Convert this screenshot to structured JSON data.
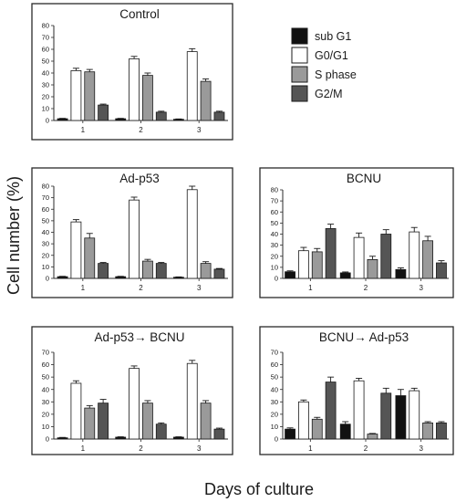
{
  "figure": {
    "ylabel": "Cell number (%)",
    "xlabel": "Days of culture"
  },
  "legend": {
    "items": [
      {
        "label": "sub G1",
        "color": "#111111"
      },
      {
        "label": "G0/G1",
        "color": "#ffffff"
      },
      {
        "label": "S phase",
        "color": "#9a9a9a"
      },
      {
        "label": "G2/M",
        "color": "#555555"
      }
    ]
  },
  "chart_data": [
    {
      "type": "bar",
      "title": "Control",
      "categories": [
        "1",
        "2",
        "3"
      ],
      "ylim": [
        0,
        80
      ],
      "yticks": [
        0,
        10,
        20,
        30,
        40,
        50,
        60,
        70,
        80
      ],
      "series": [
        {
          "name": "sub G1",
          "values": [
            1.5,
            1.5,
            1
          ],
          "errors": [
            0.3,
            0.3,
            0.3
          ]
        },
        {
          "name": "G0/G1",
          "values": [
            42,
            52,
            58
          ],
          "errors": [
            2,
            2,
            2.5
          ]
        },
        {
          "name": "S phase",
          "values": [
            41,
            38,
            33
          ],
          "errors": [
            2,
            2,
            2
          ]
        },
        {
          "name": "G2/M",
          "values": [
            13,
            7,
            7
          ],
          "errors": [
            0.8,
            0.8,
            0.8
          ]
        }
      ]
    },
    {
      "type": "bar",
      "title": "Ad-p53",
      "categories": [
        "1",
        "2",
        "3"
      ],
      "ylim": [
        0,
        80
      ],
      "yticks": [
        0,
        10,
        20,
        30,
        40,
        50,
        60,
        70,
        80
      ],
      "series": [
        {
          "name": "sub G1",
          "values": [
            1.5,
            1.5,
            1
          ],
          "errors": [
            0.3,
            0.3,
            0.3
          ]
        },
        {
          "name": "G0/G1",
          "values": [
            49,
            68,
            77
          ],
          "errors": [
            2,
            2.5,
            3
          ]
        },
        {
          "name": "S phase",
          "values": [
            35,
            15,
            13
          ],
          "errors": [
            4,
            1.5,
            1.5
          ]
        },
        {
          "name": "G2/M",
          "values": [
            13,
            13,
            8
          ],
          "errors": [
            0.8,
            0.8,
            0.6
          ]
        }
      ]
    },
    {
      "type": "bar",
      "title": "BCNU",
      "categories": [
        "1",
        "2",
        "3"
      ],
      "ylim": [
        0,
        80
      ],
      "yticks": [
        0,
        10,
        20,
        30,
        40,
        50,
        60,
        70,
        80
      ],
      "series": [
        {
          "name": "sub G1",
          "values": [
            6,
            5,
            8
          ],
          "errors": [
            0.8,
            0.8,
            1.5
          ]
        },
        {
          "name": "G0/G1",
          "values": [
            25,
            37,
            42
          ],
          "errors": [
            3,
            4,
            4
          ]
        },
        {
          "name": "S phase",
          "values": [
            24,
            17,
            34
          ],
          "errors": [
            3,
            3,
            4
          ]
        },
        {
          "name": "G2/M",
          "values": [
            45,
            40,
            14
          ],
          "errors": [
            4,
            4,
            2
          ]
        }
      ]
    },
    {
      "type": "bar",
      "title": "Ad-p53→ BCNU",
      "categories": [
        "1",
        "2",
        "3"
      ],
      "ylim": [
        0,
        70
      ],
      "yticks": [
        0,
        10,
        20,
        30,
        40,
        50,
        60,
        70
      ],
      "series": [
        {
          "name": "sub G1",
          "values": [
            1,
            1.5,
            1.5
          ],
          "errors": [
            0.3,
            0.3,
            0.3
          ]
        },
        {
          "name": "G0/G1",
          "values": [
            45,
            57,
            61
          ],
          "errors": [
            2,
            2,
            2.5
          ]
        },
        {
          "name": "S phase",
          "values": [
            25,
            29,
            29
          ],
          "errors": [
            2,
            2,
            2
          ]
        },
        {
          "name": "G2/M",
          "values": [
            29,
            12,
            8
          ],
          "errors": [
            3,
            1,
            0.8
          ]
        }
      ]
    },
    {
      "type": "bar",
      "title": "BCNU→ Ad-p53",
      "categories": [
        "1",
        "2",
        "3"
      ],
      "ylim": [
        0,
        70
      ],
      "yticks": [
        0,
        10,
        20,
        30,
        40,
        50,
        60,
        70
      ],
      "series": [
        {
          "name": "sub G1",
          "values": [
            8,
            12,
            35
          ],
          "errors": [
            1,
            2,
            5
          ]
        },
        {
          "name": "G0/G1",
          "values": [
            30,
            47,
            39
          ],
          "errors": [
            1.5,
            2,
            2
          ]
        },
        {
          "name": "S phase",
          "values": [
            16,
            4,
            13
          ],
          "errors": [
            1.5,
            0.5,
            1
          ]
        },
        {
          "name": "G2/M",
          "values": [
            46,
            37,
            13
          ],
          "errors": [
            4,
            4,
            1
          ]
        }
      ]
    }
  ]
}
